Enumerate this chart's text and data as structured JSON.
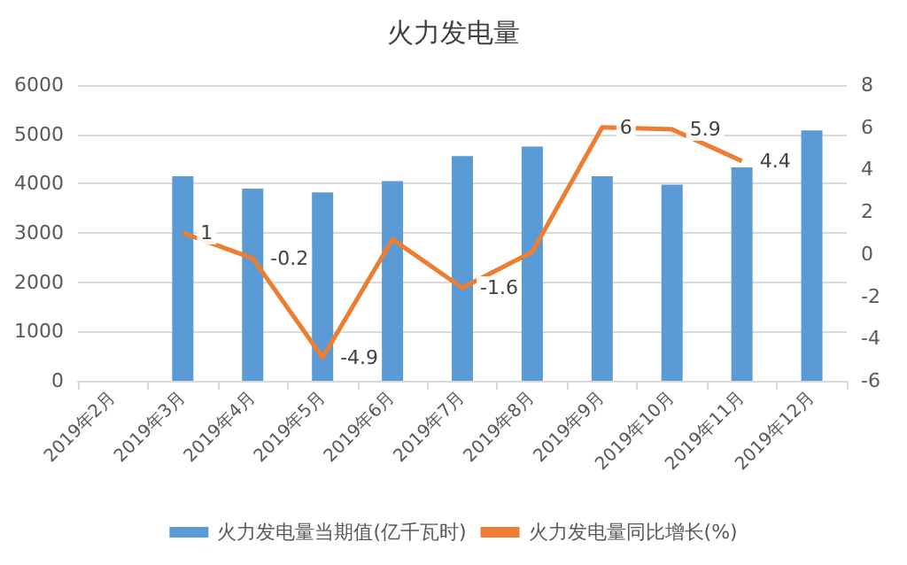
{
  "chart_data": {
    "type": "bar",
    "title": "火力发电量",
    "categories": [
      "2019年2月",
      "2019年3月",
      "2019年4月",
      "2019年5月",
      "2019年6月",
      "2019年7月",
      "2019年8月",
      "2019年9月",
      "2019年10月",
      "2019年11月",
      "2019年12月"
    ],
    "series": [
      {
        "name": "火力发电量当期值(亿千瓦时)",
        "color": "#5b9bd5",
        "values": [
          null,
          4150,
          3900,
          3820,
          4050,
          4560,
          4750,
          4150,
          3980,
          4330,
          5080
        ]
      },
      {
        "name": "火力发电量同比增长(%)",
        "type": "line",
        "axis": "y2",
        "color": "#ed7d31",
        "marker": "none",
        "values": [
          null,
          1,
          -0.2,
          -4.9,
          0.7,
          -1.6,
          0.1,
          6,
          5.9,
          4.4,
          null
        ],
        "value_labels": [
          null,
          "1",
          "-0.2",
          "-4.9",
          null,
          "-1.6",
          null,
          "6",
          "5.9",
          "4.4",
          null
        ]
      }
    ],
    "ylim": [
      0,
      6000
    ],
    "yticks": [
      0,
      1000,
      2000,
      3000,
      4000,
      5000,
      6000
    ],
    "y2lim": [
      -6,
      8
    ],
    "y2ticks": [
      -6,
      -4,
      -2,
      0,
      2,
      4,
      6,
      8
    ],
    "grid": "y",
    "legend": "bottom"
  }
}
